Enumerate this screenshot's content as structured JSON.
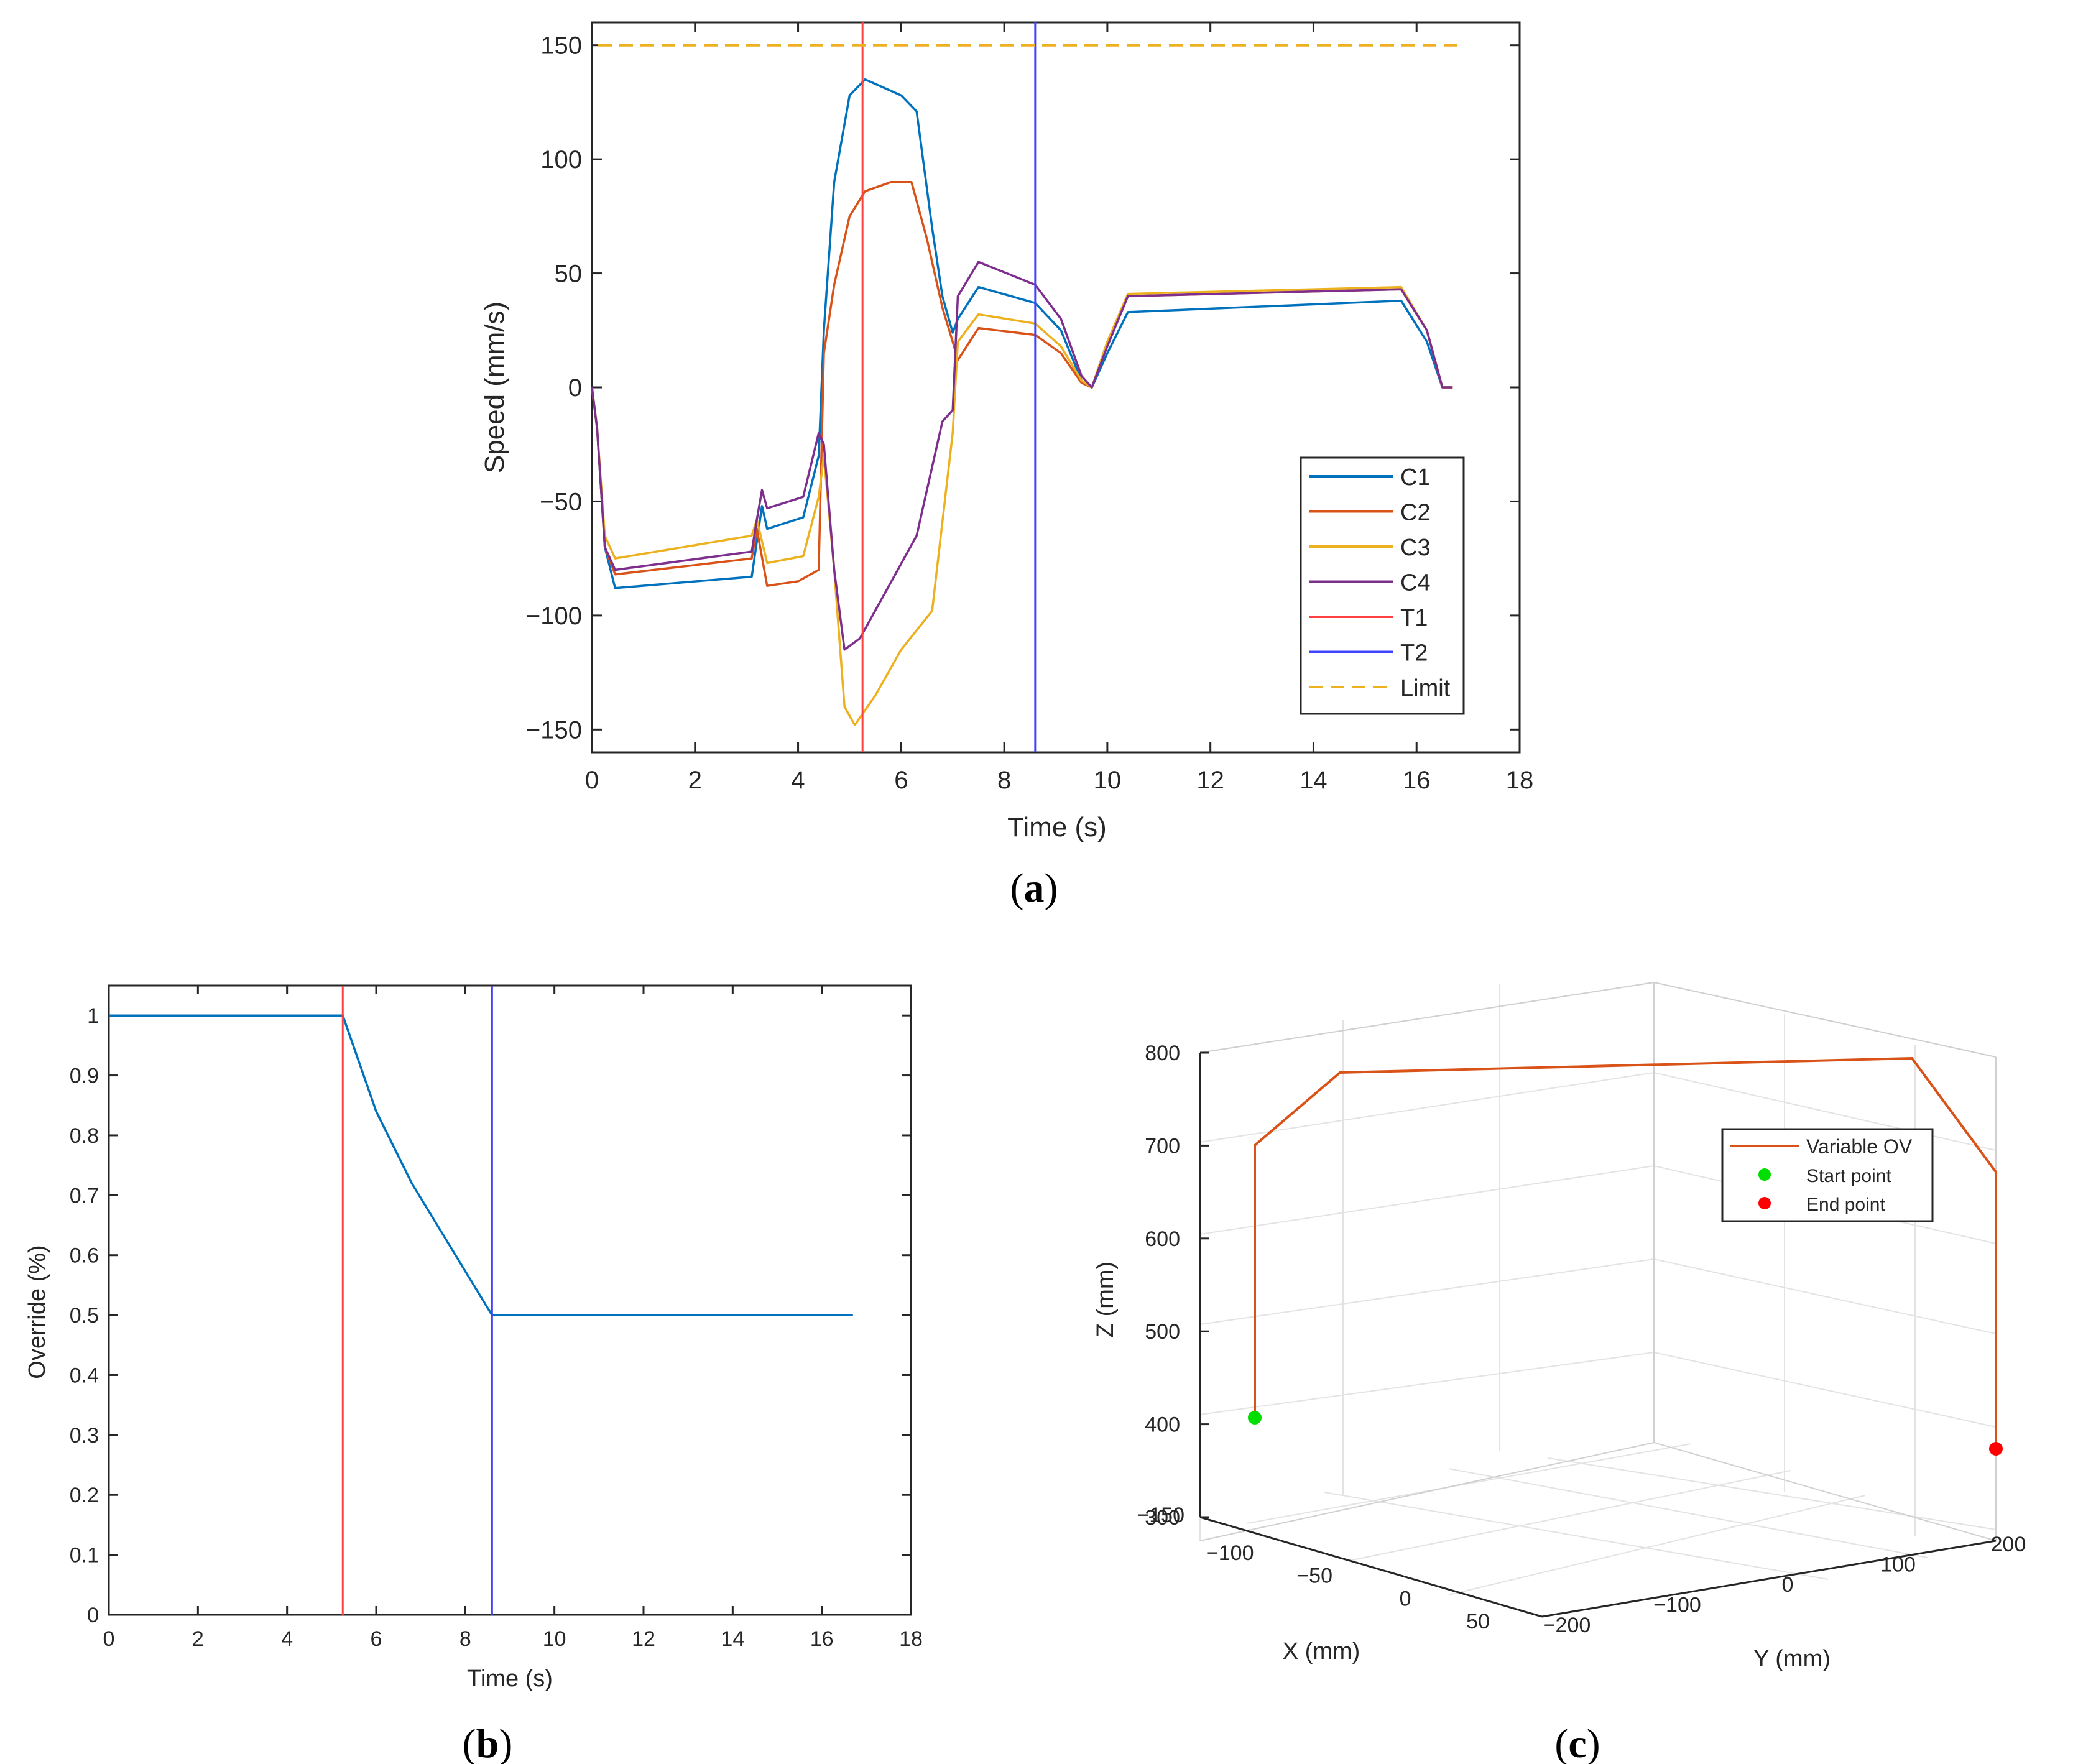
{
  "chart_data": [
    {
      "type": "line",
      "panel_label": "(a)",
      "xlabel": "Time (s)",
      "ylabel": "Speed (mm/s)",
      "xlim": [
        0,
        18
      ],
      "ylim": [
        -160,
        160
      ],
      "xticks": [
        0,
        2,
        4,
        6,
        8,
        10,
        12,
        14,
        16,
        18
      ],
      "yticks": [
        -150,
        -100,
        -50,
        0,
        50,
        100,
        150
      ],
      "legend_position": "bottom-right",
      "series": [
        {
          "name": "C1",
          "color": "#0072BD",
          "x": [
            0,
            0.1,
            0.25,
            0.45,
            3.1,
            3.3,
            3.4,
            4.1,
            4.4,
            4.5,
            4.7,
            5.0,
            5.3,
            6.0,
            6.3,
            6.6,
            6.8,
            7.0,
            7.1,
            7.5,
            8.6,
            9.1,
            9.5,
            9.7,
            10.0,
            10.4,
            15.7,
            16.2,
            16.5,
            16.7
          ],
          "y": [
            0,
            -18,
            -70,
            -88,
            -83,
            -52,
            -62,
            -57,
            -30,
            25,
            90,
            128,
            135,
            128,
            121,
            70,
            40,
            24,
            30,
            44,
            37,
            25,
            3,
            0,
            15,
            33,
            38,
            20,
            0,
            0
          ]
        },
        {
          "name": "C2",
          "color": "#D95319",
          "x": [
            0,
            0.1,
            0.25,
            0.45,
            3.1,
            3.2,
            3.4,
            4.0,
            4.4,
            4.5,
            4.7,
            5.0,
            5.3,
            5.8,
            6.2,
            6.5,
            6.8,
            7.0,
            7.1,
            7.5,
            8.6,
            9.1,
            9.5,
            9.7,
            10.0,
            10.4,
            15.7,
            16.2,
            16.5,
            16.7
          ],
          "y": [
            0,
            -18,
            -70,
            -82,
            -75,
            -62,
            -87,
            -85,
            -80,
            15,
            45,
            75,
            86,
            90,
            90,
            65,
            35,
            20,
            12,
            26,
            23,
            15,
            2,
            0,
            20,
            40,
            43,
            25,
            0,
            0
          ]
        },
        {
          "name": "C3",
          "color": "#EDB120",
          "x": [
            0,
            0.1,
            0.25,
            0.45,
            3.1,
            3.2,
            3.4,
            4.1,
            4.4,
            4.5,
            4.7,
            4.9,
            5.1,
            5.5,
            6.0,
            6.6,
            7.0,
            7.1,
            7.5,
            8.6,
            9.1,
            9.5,
            9.7,
            10.0,
            10.4,
            15.7,
            16.2,
            16.5,
            16.7
          ],
          "y": [
            0,
            -18,
            -65,
            -75,
            -65,
            -58,
            -77,
            -74,
            -48,
            -30,
            -80,
            -140,
            -148,
            -135,
            -115,
            -98,
            -20,
            20,
            32,
            28,
            18,
            3,
            0,
            20,
            41,
            44,
            25,
            0,
            0
          ]
        },
        {
          "name": "C4",
          "color": "#7E2F8E",
          "x": [
            0,
            0.1,
            0.25,
            0.45,
            3.1,
            3.2,
            3.3,
            3.4,
            4.1,
            4.4,
            4.5,
            4.7,
            4.9,
            5.2,
            6.3,
            6.8,
            7.0,
            7.1,
            7.5,
            8.6,
            9.1,
            9.5,
            9.7,
            10.0,
            10.4,
            15.7,
            16.2,
            16.5,
            16.7
          ],
          "y": [
            0,
            -18,
            -70,
            -80,
            -72,
            -58,
            -45,
            -53,
            -48,
            -20,
            -25,
            -80,
            -115,
            -110,
            -65,
            -15,
            -10,
            40,
            55,
            45,
            30,
            5,
            0,
            18,
            40,
            43,
            25,
            0,
            0
          ]
        },
        {
          "name": "T1",
          "color": "#FF4040",
          "vline": 5.25
        },
        {
          "name": "T2",
          "color": "#4040FF",
          "vline": 8.6
        },
        {
          "name": "Limit",
          "color": "#EDB120",
          "hline": 150,
          "dash": true
        }
      ]
    },
    {
      "type": "line",
      "panel_label": "(b)",
      "xlabel": "Time (s)",
      "ylabel": "Override (%)",
      "xlim": [
        0,
        18
      ],
      "ylim": [
        0,
        1.05
      ],
      "xticks": [
        0,
        2,
        4,
        6,
        8,
        10,
        12,
        14,
        16,
        18
      ],
      "yticks": [
        0,
        0.1,
        0.2,
        0.3,
        0.4,
        0.5,
        0.6,
        0.7,
        0.8,
        0.9,
        1
      ],
      "series": [
        {
          "name": "Override",
          "color": "#0072BD",
          "x": [
            0,
            5.25,
            6.0,
            6.8,
            8.6,
            16.7
          ],
          "y": [
            1,
            1,
            0.84,
            0.72,
            0.5,
            0.5
          ]
        },
        {
          "name": "T1",
          "color": "#FF4040",
          "vline": 5.25
        },
        {
          "name": "T2",
          "color": "#4040FF",
          "vline": 8.6
        }
      ]
    },
    {
      "type": "line3d",
      "panel_label": "(c)",
      "xlabel": "X (mm)",
      "ylabel": "Y (mm)",
      "zlabel": "Z (mm)",
      "xticks": [
        -150,
        -100,
        -50,
        0,
        50
      ],
      "yticks": [
        -200,
        -100,
        0,
        100,
        200
      ],
      "zticks": [
        300,
        400,
        500,
        600,
        700,
        800
      ],
      "legend_position": "top-right",
      "series": [
        {
          "name": "Variable OV",
          "color": "#D95319"
        },
        {
          "name": "Start point",
          "color": "#00DD00",
          "marker": "dot"
        },
        {
          "name": "End point",
          "color": "#FF0000",
          "marker": "dot"
        }
      ]
    }
  ]
}
